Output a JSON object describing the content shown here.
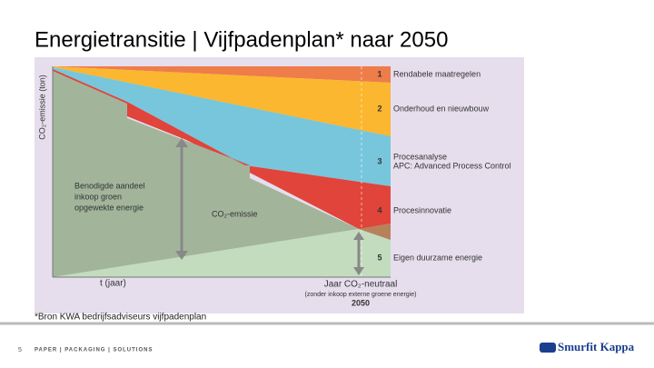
{
  "header": {
    "title": "Energietransitie | Vijfpadenplan* naar 2050"
  },
  "diagram": {
    "y_axis_label": "CO₂-emissie (ton)",
    "x_axis_label": "t (jaar)",
    "paths": [
      {
        "number": "1",
        "lines": [
          "Rendabele maatregelen"
        ]
      },
      {
        "number": "2",
        "lines": [
          "Onderhoud en nieuwbouw"
        ]
      },
      {
        "number": "3",
        "lines": [
          "Procesanalyse",
          "APC: Advanced Process Control"
        ]
      },
      {
        "number": "4",
        "lines": [
          "Procesinnovatie"
        ]
      },
      {
        "number": "5",
        "lines": [
          "Eigen duurzame energie"
        ]
      }
    ],
    "annotation_green": [
      "Benodigde aandeel",
      "inkoop groen",
      "opgewekte energie"
    ],
    "annotation_emission": "CO₂-emissie",
    "neutral_year": {
      "label": "Jaar CO₂-neutraal",
      "note": "(zonder inkoop externe groene energie)",
      "year": "2050"
    }
  },
  "footnote": "*Bron KWA bedrijfsadviseurs vijfpadenplan",
  "footer": {
    "page": "5",
    "tagline": "PAPER | PACKAGING | SOLUTIONS",
    "logo": "Smurfit Kappa"
  }
}
